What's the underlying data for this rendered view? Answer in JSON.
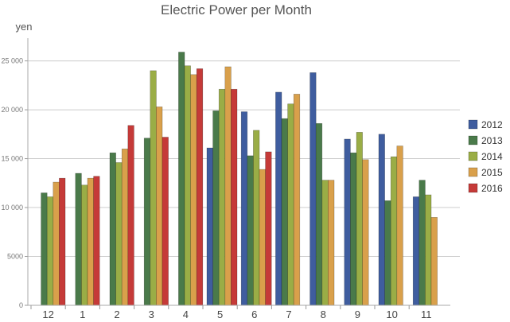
{
  "chart_data": {
    "type": "bar",
    "title": "Electric Power per Month",
    "ylabel": "yen",
    "xlabel": "",
    "categories": [
      "12",
      "1",
      "2",
      "3",
      "4",
      "5",
      "6",
      "7",
      "8",
      "9",
      "10",
      "11"
    ],
    "ylim": [
      0,
      27000
    ],
    "yticks": [
      0,
      5000,
      10000,
      15000,
      20000,
      25000
    ],
    "ytick_labels": [
      "0",
      "5000",
      "10 000",
      "15 000",
      "20 000",
      "25 000"
    ],
    "grid": true,
    "legend_position": "right",
    "series": [
      {
        "name": "2012",
        "color": "#3f5d9f",
        "values": [
          null,
          null,
          null,
          null,
          null,
          16100,
          19800,
          21800,
          23800,
          17000,
          17500,
          11100
        ]
      },
      {
        "name": "2013",
        "color": "#4a7a4a",
        "values": [
          11500,
          13500,
          15600,
          17100,
          25900,
          19900,
          15300,
          19100,
          18600,
          15600,
          10700,
          12800
        ]
      },
      {
        "name": "2014",
        "color": "#9aad46",
        "values": [
          11100,
          12300,
          14600,
          24000,
          24500,
          22100,
          17900,
          20600,
          12800,
          17700,
          15200,
          11300
        ]
      },
      {
        "name": "2015",
        "color": "#d9a04b",
        "values": [
          12600,
          13000,
          16000,
          20300,
          23600,
          24400,
          13900,
          21600,
          12800,
          14900,
          16300,
          9000
        ]
      },
      {
        "name": "2016",
        "color": "#c53a38",
        "values": [
          13000,
          13200,
          18400,
          17200,
          24200,
          22100,
          15700,
          null,
          null,
          null,
          null,
          null
        ]
      }
    ]
  }
}
